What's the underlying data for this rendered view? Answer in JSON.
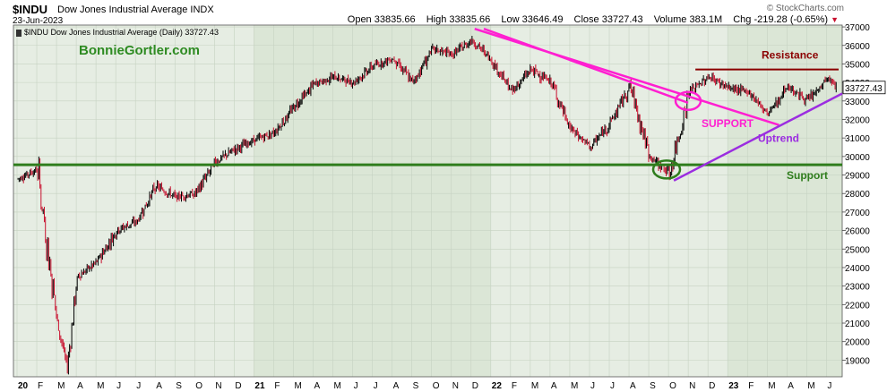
{
  "header": {
    "symbol": "$INDU",
    "name": "Dow Jones Industrial Average",
    "exchange": "INDX",
    "date": "23-Jun-2023",
    "watermark": "© StockCharts.com",
    "open_label": "Open",
    "open": "33835.66",
    "high_label": "High",
    "high": "33835.66",
    "low_label": "Low",
    "low": "33646.49",
    "close_label": "Close",
    "close": "33727.43",
    "volume_label": "Volume",
    "volume": "383.1M",
    "chg_label": "Chg",
    "chg": "-219.28 (-0.65%)",
    "chg_arrow": "▼"
  },
  "legend": {
    "text": "$INDU Dow Jones Industrial Average (Daily) 33727.43"
  },
  "brand": "BonnieGortler.com",
  "colors": {
    "up": "#000000",
    "down": "#c8102e",
    "plot_bg": "#e6ede3",
    "alt_band": "#dbe6d6",
    "grid": "#c6d2c2",
    "support": "#2f7d1d",
    "trend_down": "#ff1fd1",
    "trend_up": "#9b2de0",
    "resistance": "#8b0000"
  },
  "chart_data": {
    "type": "line",
    "title": "$INDU Dow Jones Industrial Average (Daily)",
    "ylim": [
      18100,
      37100
    ],
    "y_ticks": [
      19000,
      20000,
      21000,
      22000,
      23000,
      24000,
      25000,
      26000,
      27000,
      28000,
      29000,
      30000,
      31000,
      32000,
      33000,
      34000,
      35000,
      36000,
      37000
    ],
    "x_ticks": [
      "20",
      "F",
      "M",
      "A",
      "M",
      "J",
      "J",
      "A",
      "S",
      "O",
      "N",
      "D",
      "21",
      "F",
      "M",
      "A",
      "M",
      "J",
      "J",
      "A",
      "S",
      "O",
      "N",
      "D",
      "22",
      "F",
      "M",
      "A",
      "M",
      "J",
      "J",
      "A",
      "S",
      "O",
      "N",
      "D",
      "23",
      "F",
      "M",
      "A",
      "M",
      "J"
    ],
    "last_value": "33727.43",
    "series": [
      {
        "values_by_month": [
          {
            "m": "2020-01",
            "v": 28800
          },
          {
            "m": "2020-02",
            "v": 29300
          },
          {
            "m": "2020-03",
            "v": 21000
          },
          {
            "m": "2020-03b",
            "v": 18600
          },
          {
            "m": "2020-04",
            "v": 23500
          },
          {
            "m": "2020-05",
            "v": 24300
          },
          {
            "m": "2020-06",
            "v": 26000
          },
          {
            "m": "2020-07",
            "v": 26500
          },
          {
            "m": "2020-08",
            "v": 28400
          },
          {
            "m": "2020-09",
            "v": 27800
          },
          {
            "m": "2020-10",
            "v": 28000
          },
          {
            "m": "2020-11",
            "v": 29700
          },
          {
            "m": "2020-12",
            "v": 30400
          },
          {
            "m": "2021-01",
            "v": 30900
          },
          {
            "m": "2021-02",
            "v": 31300
          },
          {
            "m": "2021-03",
            "v": 32700
          },
          {
            "m": "2021-04",
            "v": 33900
          },
          {
            "m": "2021-05",
            "v": 34300
          },
          {
            "m": "2021-06",
            "v": 34000
          },
          {
            "m": "2021-07",
            "v": 34900
          },
          {
            "m": "2021-08",
            "v": 35300
          },
          {
            "m": "2021-09",
            "v": 34000
          },
          {
            "m": "2021-10",
            "v": 35800
          },
          {
            "m": "2021-11",
            "v": 35500
          },
          {
            "m": "2021-12",
            "v": 36300
          },
          {
            "m": "2022-01",
            "v": 35200
          },
          {
            "m": "2022-02",
            "v": 33500
          },
          {
            "m": "2022-03",
            "v": 34700
          },
          {
            "m": "2022-04",
            "v": 34000
          },
          {
            "m": "2022-05",
            "v": 31500
          },
          {
            "m": "2022-06",
            "v": 30500
          },
          {
            "m": "2022-07",
            "v": 31800
          },
          {
            "m": "2022-08",
            "v": 33800
          },
          {
            "m": "2022-09",
            "v": 30000
          },
          {
            "m": "2022-10",
            "v": 29100
          },
          {
            "m": "2022-11",
            "v": 33500
          },
          {
            "m": "2022-12",
            "v": 34300
          },
          {
            "m": "2023-01",
            "v": 33700
          },
          {
            "m": "2023-02",
            "v": 33500
          },
          {
            "m": "2023-03",
            "v": 32300
          },
          {
            "m": "2023-04",
            "v": 33800
          },
          {
            "m": "2023-05",
            "v": 33000
          },
          {
            "m": "2023-06",
            "v": 34200
          },
          {
            "m": "2023-06b",
            "v": 33727
          }
        ]
      }
    ],
    "annotations": [
      {
        "text": "Resistance",
        "type": "horizontal",
        "y": 34700,
        "x_from": "2022-11",
        "x_to": "2023-06"
      },
      {
        "text": "Support",
        "type": "horizontal",
        "y": 29550,
        "x_from": "2020-01",
        "x_to": "2023-06"
      },
      {
        "text": "SUPPORT",
        "type": "trendline",
        "from": {
          "x": "2021-12",
          "y": 36900
        },
        "to": {
          "x": "2023-03",
          "y": 31700
        }
      },
      {
        "text": "Uptrend",
        "type": "trendline",
        "from": {
          "x": "2022-10",
          "y": 28700
        },
        "to": {
          "x": "2023-06",
          "y": 33400
        }
      }
    ]
  }
}
